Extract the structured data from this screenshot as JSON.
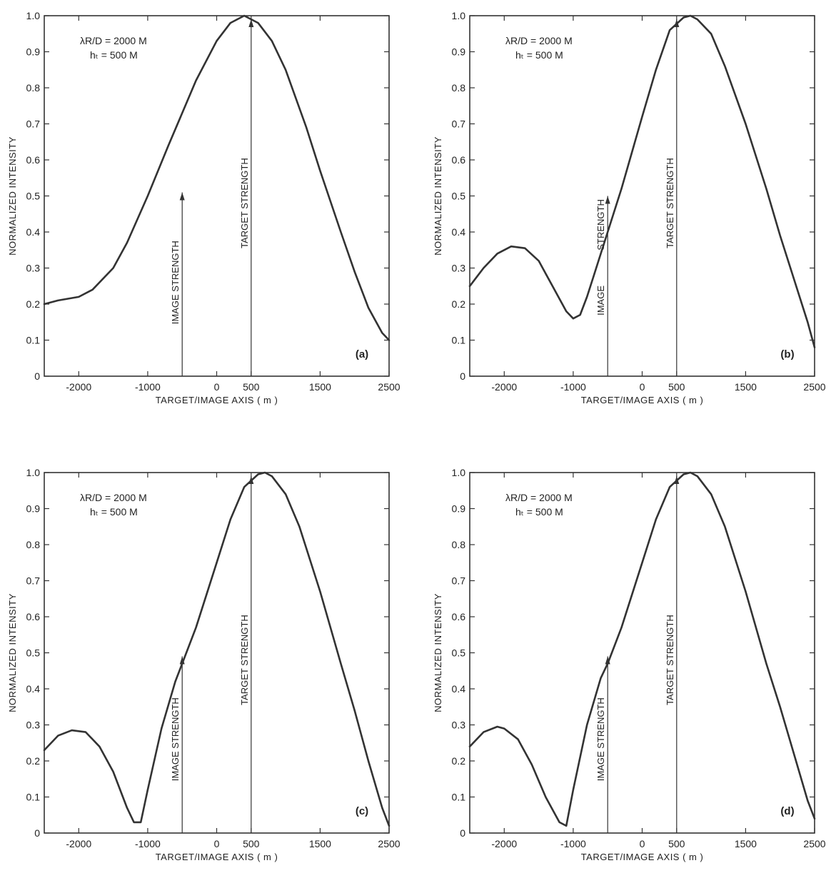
{
  "chart_data": [
    {
      "type": "line",
      "panel_label": "(a)",
      "annotation": [
        "λR/D = 2000 M",
        "hₜ =  500 M"
      ],
      "xlabel": "TARGET/IMAGE  AXIS  ( m )",
      "ylabel": "NORMALIZED  INTENSITY",
      "xlim": [
        -2500,
        2500
      ],
      "ylim": [
        0,
        1.0
      ],
      "xticks": [
        -2000,
        -1000,
        0,
        500,
        1500,
        2500
      ],
      "xtick_labels": [
        "-2000",
        "-1000",
        "0",
        "500",
        "1500",
        "2500"
      ],
      "yticks": [
        0,
        0.1,
        0.2,
        0.3,
        0.4,
        0.5,
        0.6,
        0.7,
        0.8,
        0.9,
        1.0
      ],
      "ytick_labels": [
        "0",
        "0.1",
        "0.2",
        "0.3",
        "0.4",
        "0.5",
        "0.6",
        "0.7",
        "0.8",
        "0.9",
        "1.0"
      ],
      "grid": false,
      "series": [
        {
          "x": [
            -2500,
            -2300,
            -2000,
            -1800,
            -1500,
            -1300,
            -1000,
            -700,
            -500,
            -300,
            0,
            200,
            400,
            600,
            800,
            1000,
            1300,
            1500,
            1800,
            2000,
            2200,
            2400,
            2500
          ],
          "y": [
            0.2,
            0.21,
            0.22,
            0.24,
            0.3,
            0.37,
            0.5,
            0.64,
            0.73,
            0.82,
            0.93,
            0.98,
            1.0,
            0.98,
            0.93,
            0.85,
            0.69,
            0.57,
            0.4,
            0.29,
            0.19,
            0.12,
            0.1
          ]
        }
      ],
      "markers": [
        {
          "label": "IMAGE  STRENGTH",
          "x": -500,
          "y": 0.51
        },
        {
          "label": "TARGET  STRENGTH",
          "x": 500,
          "y": 0.99
        }
      ]
    },
    {
      "type": "line",
      "panel_label": "(b)",
      "annotation": [
        "λR/D = 2000 M",
        "hₜ =  500 M"
      ],
      "xlabel": "TARGET/IMAGE  AXIS  ( m )",
      "ylabel": "NORMALIZED  INTENSITY",
      "xlim": [
        -2500,
        2500
      ],
      "ylim": [
        0,
        1.0
      ],
      "xticks": [
        -2000,
        -1000,
        0,
        500,
        1500,
        2500
      ],
      "xtick_labels": [
        "-2000",
        "-1000",
        "0",
        "500",
        "1500",
        "2500"
      ],
      "yticks": [
        0,
        0.1,
        0.2,
        0.3,
        0.4,
        0.5,
        0.6,
        0.7,
        0.8,
        0.9,
        1.0
      ],
      "ytick_labels": [
        "0",
        "0.1",
        "0.2",
        "0.3",
        "0.4",
        "0.5",
        "0.6",
        "0.7",
        "0.8",
        "0.9",
        "1.0"
      ],
      "grid": false,
      "series": [
        {
          "x": [
            -2500,
            -2300,
            -2100,
            -1900,
            -1700,
            -1500,
            -1300,
            -1100,
            -1000,
            -900,
            -800,
            -700,
            -500,
            -300,
            0,
            200,
            400,
            600,
            700,
            800,
            1000,
            1200,
            1500,
            1800,
            2000,
            2200,
            2400,
            2500
          ],
          "y": [
            0.25,
            0.3,
            0.34,
            0.36,
            0.355,
            0.32,
            0.25,
            0.18,
            0.16,
            0.17,
            0.22,
            0.28,
            0.4,
            0.52,
            0.72,
            0.85,
            0.96,
            0.995,
            1.0,
            0.99,
            0.95,
            0.86,
            0.7,
            0.52,
            0.39,
            0.27,
            0.15,
            0.08
          ]
        }
      ],
      "markers": [
        {
          "label": "IMAGE",
          "label2": "STRENGTH",
          "x": -500,
          "y": 0.5
        },
        {
          "label": "TARGET  STRENGTH",
          "x": 500,
          "y": 0.99
        }
      ]
    },
    {
      "type": "line",
      "panel_label": "(c)",
      "annotation": [
        "λR/D = 2000 M",
        "hₜ =  500 M"
      ],
      "xlabel": "TARGET/IMAGE  AXIS  ( m )",
      "ylabel": "NORMALIZED  INTENSITY",
      "xlim": [
        -2500,
        2500
      ],
      "ylim": [
        0,
        1.0
      ],
      "xticks": [
        -2000,
        -1000,
        0,
        500,
        1500,
        2500
      ],
      "xtick_labels": [
        "-2000",
        "-1000",
        "0",
        "500",
        "1500",
        "2500"
      ],
      "yticks": [
        0,
        0.1,
        0.2,
        0.3,
        0.4,
        0.5,
        0.6,
        0.7,
        0.8,
        0.9,
        1.0
      ],
      "ytick_labels": [
        "0",
        "0.1",
        "0.2",
        "0.3",
        "0.4",
        "0.5",
        "0.6",
        "0.7",
        "0.8",
        "0.9",
        "1.0"
      ],
      "grid": false,
      "series": [
        {
          "x": [
            -2500,
            -2300,
            -2100,
            -1900,
            -1700,
            -1500,
            -1300,
            -1200,
            -1100,
            -1000,
            -800,
            -600,
            -500,
            -300,
            0,
            200,
            400,
            600,
            700,
            800,
            1000,
            1200,
            1500,
            1800,
            2000,
            2200,
            2400,
            2500
          ],
          "y": [
            0.23,
            0.27,
            0.285,
            0.28,
            0.24,
            0.17,
            0.07,
            0.03,
            0.03,
            0.12,
            0.29,
            0.42,
            0.47,
            0.57,
            0.75,
            0.87,
            0.96,
            0.995,
            1.0,
            0.99,
            0.94,
            0.85,
            0.67,
            0.47,
            0.34,
            0.2,
            0.07,
            0.02
          ]
        }
      ],
      "markers": [
        {
          "label": "IMAGE  STRENGTH",
          "x": -500,
          "y": 0.49
        },
        {
          "label": "TARGET  STRENGTH",
          "x": 500,
          "y": 0.99
        }
      ]
    },
    {
      "type": "line",
      "panel_label": "(d)",
      "annotation": [
        "λR/D = 2000 M",
        "hₜ =  500 M"
      ],
      "xlabel": "TARGET/IMAGE  AXIS  ( m )",
      "ylabel": "NORMALIZED  INTENSITY",
      "xlim": [
        -2500,
        2500
      ],
      "ylim": [
        0,
        1.0
      ],
      "xticks": [
        -2000,
        -1000,
        0,
        500,
        1500,
        2500
      ],
      "xtick_labels": [
        "-2000",
        "-1000",
        "0",
        "500",
        "1500",
        "2500"
      ],
      "yticks": [
        0,
        0.1,
        0.2,
        0.3,
        0.4,
        0.5,
        0.6,
        0.7,
        0.8,
        0.9,
        1.0
      ],
      "ytick_labels": [
        "0",
        "0.1",
        "0.2",
        "0.3",
        "0.4",
        "0.5",
        "0.6",
        "0.7",
        "0.8",
        "0.9",
        "1.0"
      ],
      "grid": false,
      "series": [
        {
          "x": [
            -2500,
            -2300,
            -2100,
            -2000,
            -1800,
            -1600,
            -1400,
            -1200,
            -1100,
            -1000,
            -800,
            -600,
            -500,
            -300,
            0,
            200,
            400,
            600,
            700,
            800,
            1000,
            1200,
            1500,
            1800,
            2000,
            2200,
            2400,
            2500
          ],
          "y": [
            0.24,
            0.28,
            0.295,
            0.29,
            0.26,
            0.19,
            0.1,
            0.03,
            0.02,
            0.12,
            0.3,
            0.43,
            0.47,
            0.57,
            0.75,
            0.87,
            0.96,
            0.995,
            1.0,
            0.99,
            0.94,
            0.85,
            0.67,
            0.47,
            0.35,
            0.22,
            0.09,
            0.04
          ]
        }
      ],
      "markers": [
        {
          "label": "IMAGE  STRENGTH",
          "x": -500,
          "y": 0.49
        },
        {
          "label": "TARGET  STRENGTH",
          "x": 500,
          "y": 0.99
        }
      ]
    }
  ]
}
